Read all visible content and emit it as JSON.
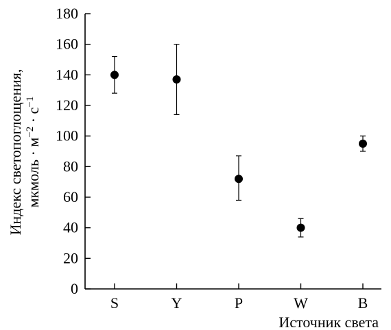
{
  "chart_data": {
    "type": "scatter",
    "title": "",
    "xlabel": "Источник света",
    "ylabel": {
      "line1": "Индекс светопоглощения,",
      "line2_prefix": "мкмоль · м",
      "line2_exp1": "−2",
      "line2_mid": " · с",
      "line2_exp2": "−1"
    },
    "categories": [
      "S",
      "Y",
      "P",
      "W",
      "B"
    ],
    "yticks": [
      "0",
      "20",
      "40",
      "60",
      "80",
      "100",
      "120",
      "140",
      "160",
      "180"
    ],
    "ylim": [
      0,
      180
    ],
    "grid": false,
    "series": [
      {
        "values": [
          140,
          137,
          72,
          40,
          95
        ],
        "err_low": [
          128,
          114,
          58,
          34,
          90
        ],
        "err_high": [
          152,
          160,
          87,
          46,
          100
        ]
      }
    ]
  }
}
